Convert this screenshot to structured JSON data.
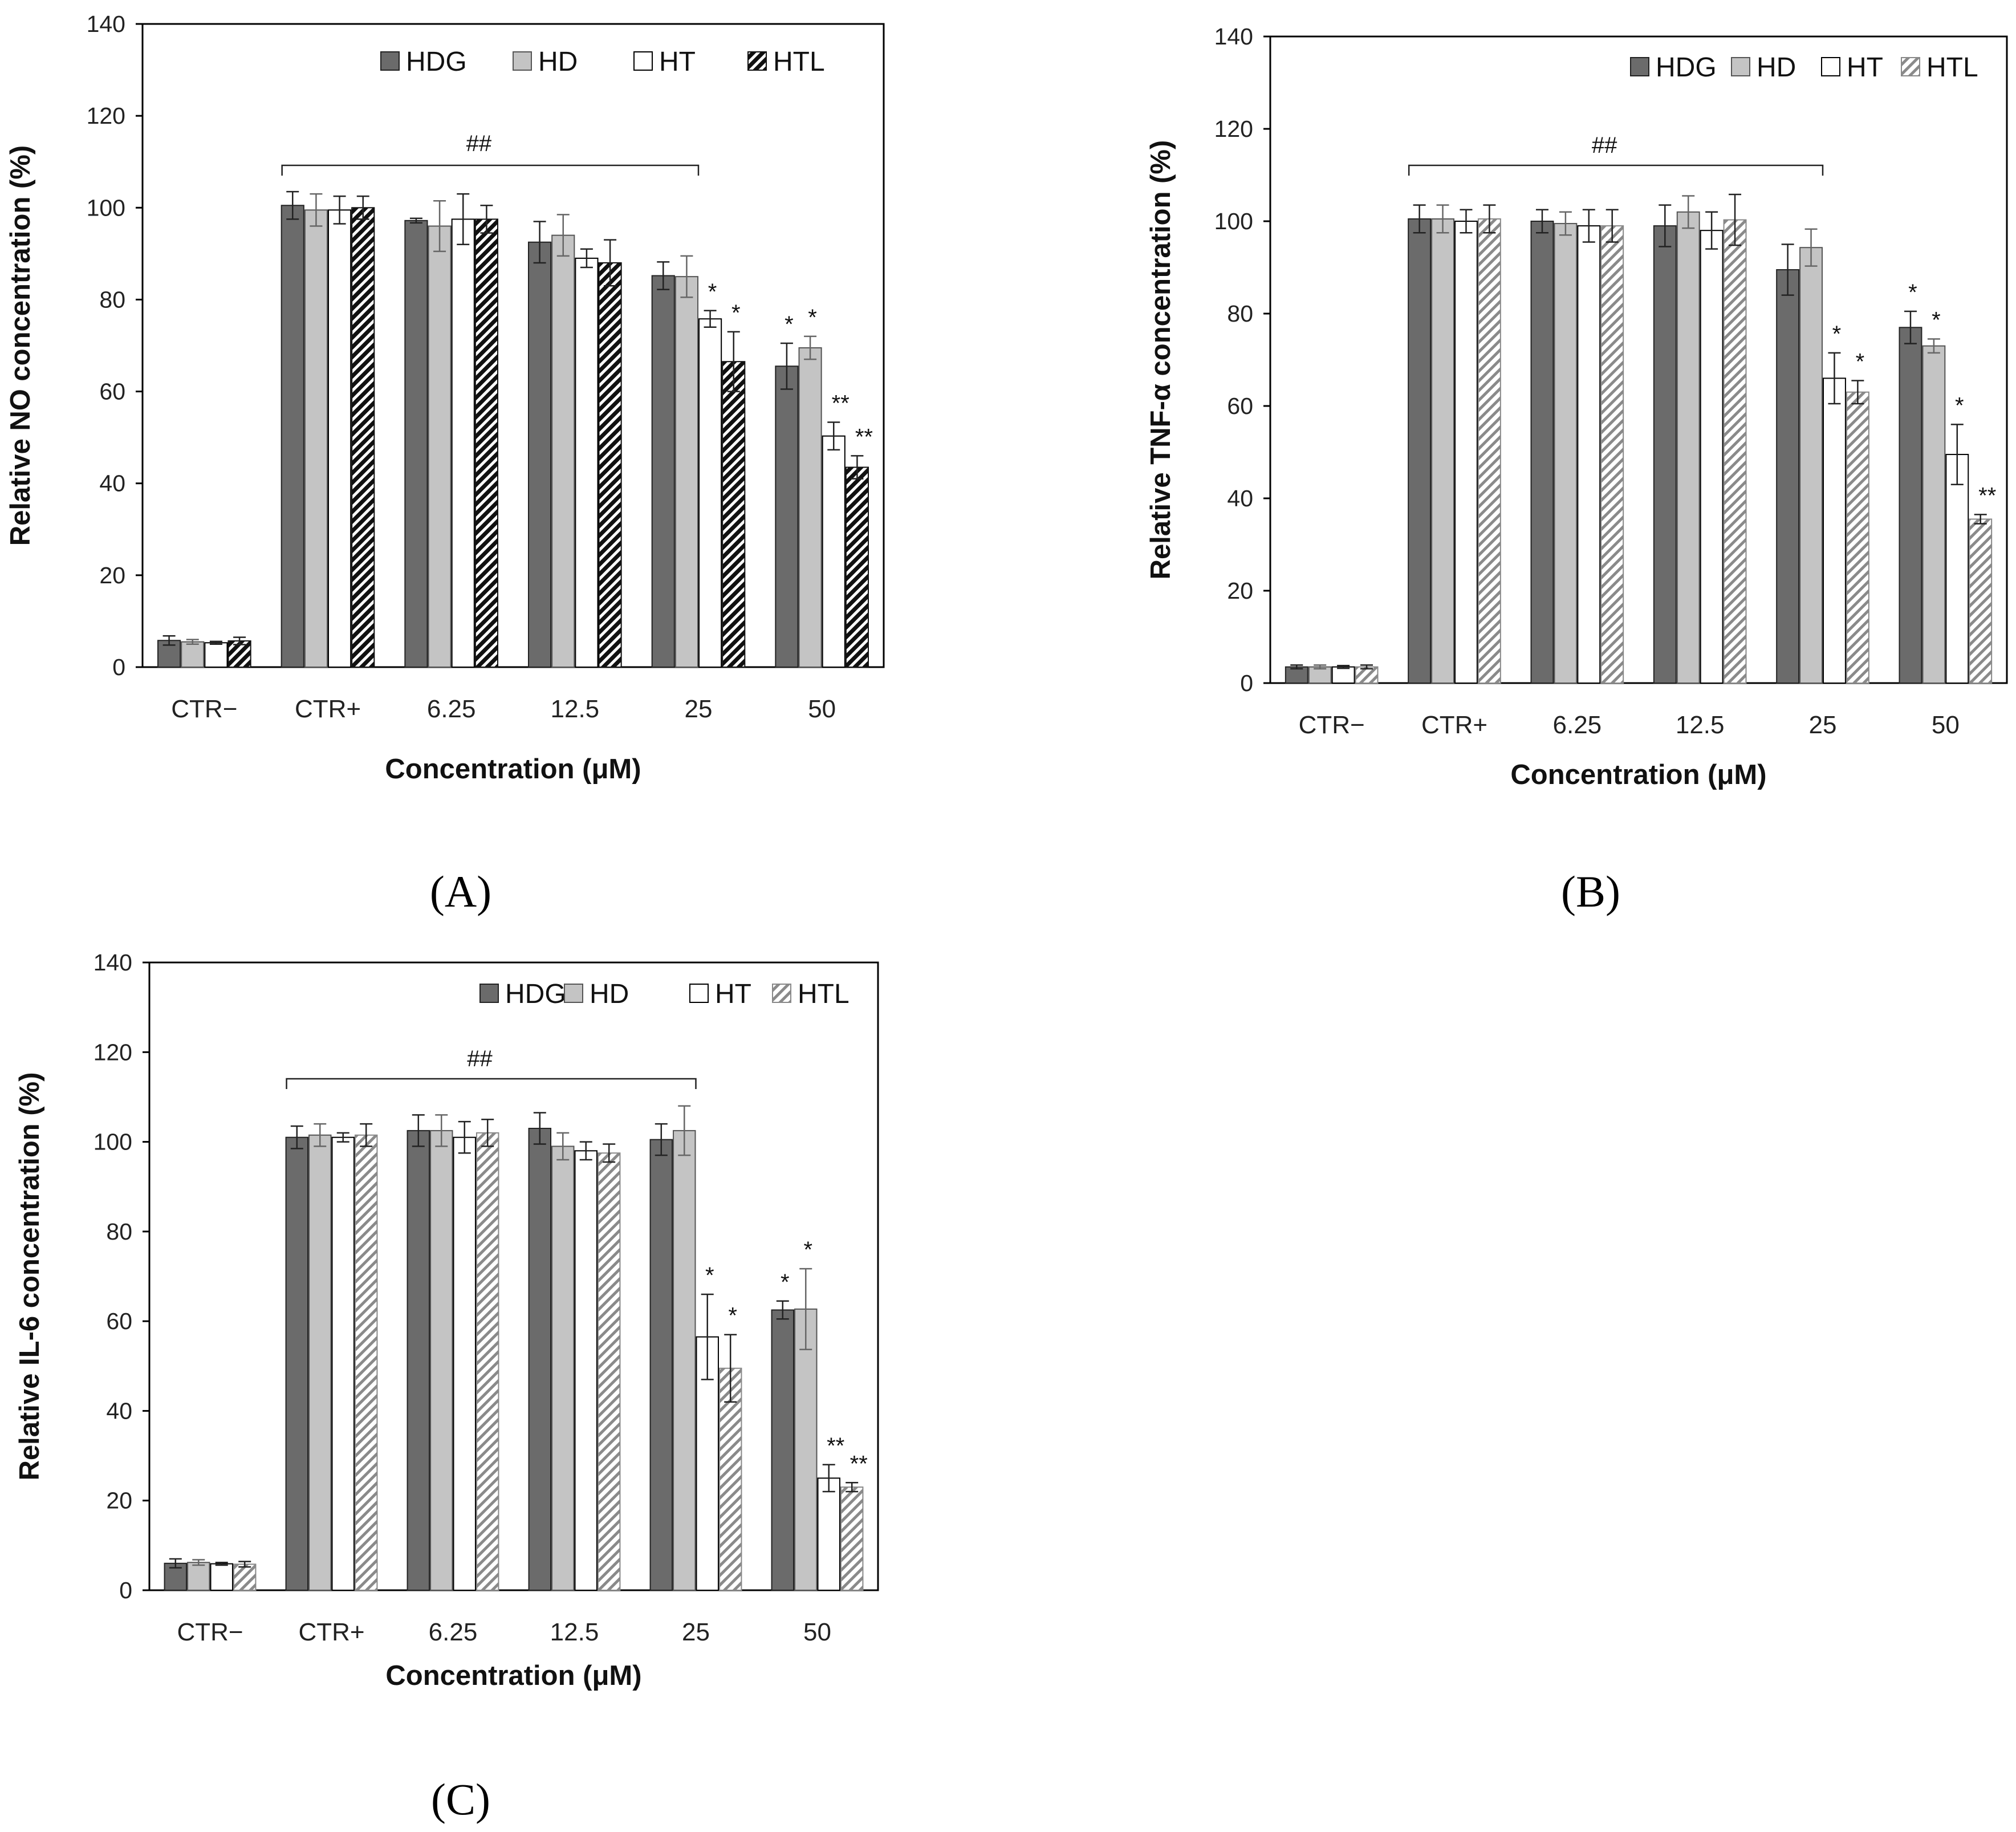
{
  "colors": {
    "HDG": "#6b6b6b",
    "HD": "#c4c4c4",
    "HT": "#ffffff",
    "HTL_A": "#111111",
    "HTL_BC": "#9a9a9a",
    "axis": "#000000"
  },
  "chart_data": [
    {
      "type": "bar",
      "panel_label": "(A)",
      "ylabel": "Relative NO concentration (%)",
      "xlabel": "Concentration (μM)",
      "ylim": [
        0,
        140
      ],
      "yticks": [
        "0",
        "20",
        "40",
        "60",
        "80",
        "100",
        "120",
        "140"
      ],
      "categories": [
        "CTR−",
        "CTR+",
        "6.25",
        "12.5",
        "25",
        "50"
      ],
      "legend_position": "top-right",
      "significance_bracket": {
        "label": "##",
        "from": "CTR+",
        "to": "25"
      },
      "series": [
        {
          "name": "HDG",
          "values": [
            5.8,
            100.5,
            97.2,
            92.5,
            85.2,
            65.5
          ],
          "errors": [
            1.0,
            3.0,
            0.5,
            4.5,
            3.0,
            5.0
          ],
          "marks": [
            "",
            "",
            "",
            "",
            "",
            "*"
          ]
        },
        {
          "name": "HD",
          "values": [
            5.5,
            99.5,
            96.0,
            94.0,
            85.0,
            69.5
          ],
          "errors": [
            0.5,
            3.5,
            5.5,
            4.5,
            4.5,
            2.5
          ],
          "marks": [
            "",
            "",
            "",
            "",
            "",
            "*"
          ]
        },
        {
          "name": "HT",
          "values": [
            5.3,
            99.5,
            97.5,
            89.0,
            75.8,
            50.3
          ],
          "errors": [
            0.3,
            3.0,
            5.5,
            2.0,
            1.8,
            3.0
          ],
          "marks": [
            "",
            "",
            "",
            "",
            "*",
            "**"
          ]
        },
        {
          "name": "HTL",
          "values": [
            5.7,
            100.0,
            97.5,
            88.0,
            66.5,
            43.5
          ],
          "errors": [
            0.8,
            2.5,
            3.0,
            5.0,
            6.5,
            2.5
          ],
          "marks": [
            "",
            "",
            "",
            "",
            "*",
            "**"
          ]
        }
      ]
    },
    {
      "type": "bar",
      "panel_label": "(B)",
      "ylabel": "Relative TNF-α concentration (%)",
      "xlabel": "Concentration (μM)",
      "ylim": [
        0,
        140
      ],
      "yticks": [
        "0",
        "20",
        "40",
        "60",
        "80",
        "100",
        "120",
        "140"
      ],
      "categories": [
        "CTR−",
        "CTR+",
        "6.25",
        "12.5",
        "25",
        "50"
      ],
      "legend_position": "top-right",
      "significance_bracket": {
        "label": "##",
        "from": "CTR+",
        "to": "25"
      },
      "series": [
        {
          "name": "HDG",
          "values": [
            3.5,
            100.5,
            100.0,
            99.0,
            89.5,
            77.0
          ],
          "errors": [
            0.4,
            3.0,
            2.5,
            4.5,
            5.5,
            3.5
          ],
          "marks": [
            "",
            "",
            "",
            "",
            "",
            "*"
          ]
        },
        {
          "name": "HD",
          "values": [
            3.5,
            100.5,
            99.5,
            102.0,
            94.3,
            73.0
          ],
          "errors": [
            0.4,
            3.0,
            2.5,
            3.5,
            4.0,
            1.5
          ],
          "marks": [
            "",
            "",
            "",
            "",
            "",
            "*"
          ]
        },
        {
          "name": "HT",
          "values": [
            3.5,
            100.0,
            99.0,
            98.0,
            66.0,
            49.5
          ],
          "errors": [
            0.3,
            2.5,
            3.5,
            4.0,
            5.5,
            6.5
          ],
          "marks": [
            "",
            "",
            "",
            "",
            "*",
            "*"
          ]
        },
        {
          "name": "HTL",
          "values": [
            3.5,
            100.5,
            99.0,
            100.3,
            63.0,
            35.5
          ],
          "errors": [
            0.4,
            3.0,
            3.5,
            5.5,
            2.5,
            1.0
          ],
          "marks": [
            "",
            "",
            "",
            "",
            "*",
            "**"
          ]
        }
      ]
    },
    {
      "type": "bar",
      "panel_label": "(C)",
      "ylabel": "Relative IL-6 concentration (%)",
      "xlabel": "Concentration (μM)",
      "ylim": [
        0,
        140
      ],
      "yticks": [
        "0",
        "20",
        "40",
        "60",
        "80",
        "100",
        "120",
        "140"
      ],
      "categories": [
        "CTR−",
        "CTR+",
        "6.25",
        "12.5",
        "25",
        "50"
      ],
      "legend_position": "top-right",
      "significance_bracket": {
        "label": "##",
        "from": "CTR+",
        "to": "25"
      },
      "series": [
        {
          "name": "HDG",
          "values": [
            6.0,
            101.0,
            102.5,
            103.0,
            100.5,
            62.5
          ],
          "errors": [
            1.0,
            2.5,
            3.5,
            3.5,
            3.5,
            2.0
          ],
          "marks": [
            "",
            "",
            "",
            "",
            "",
            "*"
          ]
        },
        {
          "name": "HD",
          "values": [
            6.2,
            101.5,
            102.5,
            99.0,
            102.5,
            62.7
          ],
          "errors": [
            0.6,
            2.5,
            3.5,
            3.0,
            5.5,
            9.0
          ],
          "marks": [
            "",
            "",
            "",
            "",
            "",
            "*"
          ]
        },
        {
          "name": "HT",
          "values": [
            5.9,
            101.0,
            101.0,
            98.0,
            56.5,
            25.0
          ],
          "errors": [
            0.3,
            1.0,
            3.5,
            2.0,
            9.5,
            3.0
          ],
          "marks": [
            "",
            "",
            "",
            "",
            "*",
            "**"
          ]
        },
        {
          "name": "HTL",
          "values": [
            5.8,
            101.5,
            102.0,
            97.5,
            49.5,
            23.0
          ],
          "errors": [
            0.6,
            2.5,
            3.0,
            2.0,
            7.5,
            1.0
          ],
          "marks": [
            "",
            "",
            "",
            "",
            "*",
            "**"
          ]
        }
      ]
    }
  ]
}
